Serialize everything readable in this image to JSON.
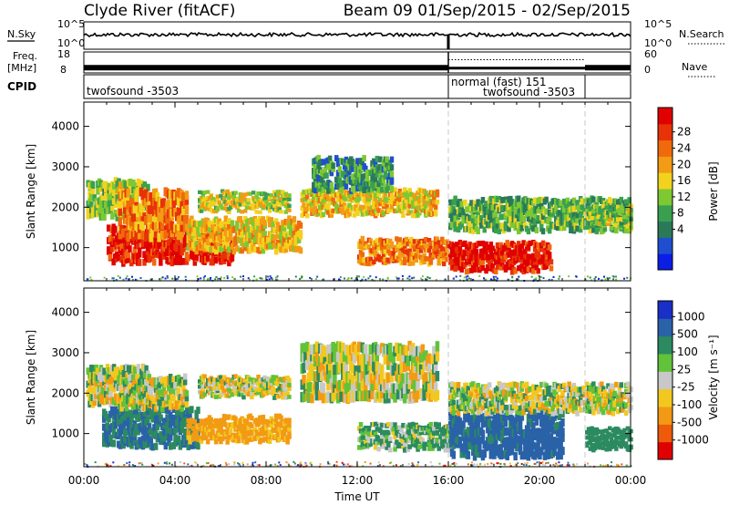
{
  "header": {
    "station": "Clyde River (fitACF)",
    "beam_date": "Beam 09  01/Sep/2015 - 02/Sep/2015"
  },
  "strips": {
    "nsky_label": "N.Sky",
    "nsearch_label": "N.Search",
    "noise_ticks_left": [
      "10^5",
      "10^0"
    ],
    "noise_ticks_right": [
      "10^5",
      "10^0"
    ],
    "freq_label_1": "Freq.",
    "freq_label_2": "[MHz]",
    "freq_ticks": [
      "18",
      "8"
    ],
    "nave_label": "Nave",
    "nave_ticks": [
      "60",
      "0"
    ],
    "cpid_label": "CPID",
    "cpid_segments": [
      {
        "text": "twofsound -3503"
      },
      {
        "text": "normal (fast) 151"
      },
      {
        "text": "twofsound -3503"
      }
    ]
  },
  "power_panel": {
    "ylabel": "Slant Range [km]",
    "colorbar_label": "Power [dB]",
    "colorbar_ticks": [
      "28",
      "24",
      "20",
      "16",
      "12",
      "8",
      "4"
    ],
    "colors": [
      "#0a1ee6",
      "#1f4fd0",
      "#2a7a5a",
      "#3aa050",
      "#7ec832",
      "#f2d21e",
      "#f29b14",
      "#f06a0c",
      "#e83208",
      "#e00000"
    ]
  },
  "velocity_panel": {
    "ylabel": "Slant Range [km]",
    "colorbar_label": "Velocity [m s⁻¹]",
    "colorbar_ticks": [
      "1000",
      "500",
      "100",
      "25",
      "-25",
      "-100",
      "-500",
      "-1000"
    ],
    "colors": [
      "#1a2ec8",
      "#2a62a8",
      "#2c8a60",
      "#62c23a",
      "#c8c8c8",
      "#f2c81e",
      "#f29a14",
      "#ec5a0a",
      "#e00000"
    ]
  },
  "chart_data": {
    "type": "heatmap",
    "x_tick_labels": [
      "00:00",
      "04:00",
      "08:00",
      "12:00",
      "16:00",
      "20:00",
      "00:00"
    ],
    "xlabel": "Time UT",
    "x_range_hours": [
      0,
      24
    ],
    "y_ticks": [
      "1000",
      "2000",
      "3000",
      "4000"
    ],
    "y_range_km": [
      180,
      4600
    ],
    "mode_change_hours": [
      16,
      22
    ],
    "freq_range_mhz": [
      8,
      18
    ],
    "freq_mhz_approx": 10.5,
    "nave_range": [
      0,
      60
    ],
    "nave_approx": 30,
    "power_echo_bands": [
      {
        "t_start": 0.1,
        "t_end": 2.8,
        "range_low": 1700,
        "range_high": 2650,
        "power_db": 14
      },
      {
        "t_start": 1.0,
        "t_end": 6.5,
        "range_low": 600,
        "range_high": 1500,
        "power_db": 28
      },
      {
        "t_start": 1.5,
        "t_end": 4.5,
        "range_low": 1200,
        "range_high": 2400,
        "power_db": 22
      },
      {
        "t_start": 4.5,
        "t_end": 9.5,
        "range_low": 900,
        "range_high": 1700,
        "power_db": 18
      },
      {
        "t_start": 5.0,
        "t_end": 9.0,
        "range_low": 1900,
        "range_high": 2350,
        "power_db": 16
      },
      {
        "t_start": 9.5,
        "t_end": 15.5,
        "range_low": 1800,
        "range_high": 2400,
        "power_db": 18
      },
      {
        "t_start": 10.0,
        "t_end": 13.5,
        "range_low": 2400,
        "range_high": 3200,
        "power_db": 10
      },
      {
        "t_start": 12.0,
        "t_end": 16.0,
        "range_low": 600,
        "range_high": 1200,
        "power_db": 22
      },
      {
        "t_start": 16.0,
        "t_end": 20.5,
        "range_low": 400,
        "range_high": 1100,
        "power_db": 28
      },
      {
        "t_start": 16.0,
        "t_end": 24.0,
        "range_low": 1400,
        "range_high": 2200,
        "power_db": 12
      },
      {
        "t_start": 22.0,
        "t_end": 24.0,
        "range_low": 1500,
        "range_high": 2000,
        "power_db": 14
      }
    ],
    "velocity_echo_bands": [
      {
        "t_start": 0.1,
        "t_end": 2.8,
        "range_low": 1700,
        "range_high": 2650,
        "velocity": 0
      },
      {
        "t_start": 0.8,
        "t_end": 5.0,
        "range_low": 650,
        "range_high": 1600,
        "velocity": 500
      },
      {
        "t_start": 1.5,
        "t_end": 4.5,
        "range_low": 1600,
        "range_high": 2400,
        "velocity": 0
      },
      {
        "t_start": 4.5,
        "t_end": 9.0,
        "range_low": 800,
        "range_high": 1400,
        "velocity": -200
      },
      {
        "t_start": 5.0,
        "t_end": 9.0,
        "range_low": 1900,
        "range_high": 2400,
        "velocity": 0
      },
      {
        "t_start": 9.5,
        "t_end": 15.5,
        "range_low": 1800,
        "range_high": 3200,
        "velocity": 0
      },
      {
        "t_start": 12.0,
        "t_end": 16.0,
        "range_low": 600,
        "range_high": 1200,
        "velocity": 100
      },
      {
        "t_start": 16.0,
        "t_end": 21.0,
        "range_low": 400,
        "range_high": 1500,
        "velocity": 600
      },
      {
        "t_start": 16.0,
        "t_end": 24.0,
        "range_low": 1500,
        "range_high": 2200,
        "velocity": 0
      },
      {
        "t_start": 22.0,
        "t_end": 24.0,
        "range_low": 600,
        "range_high": 1100,
        "velocity": 300
      }
    ]
  }
}
